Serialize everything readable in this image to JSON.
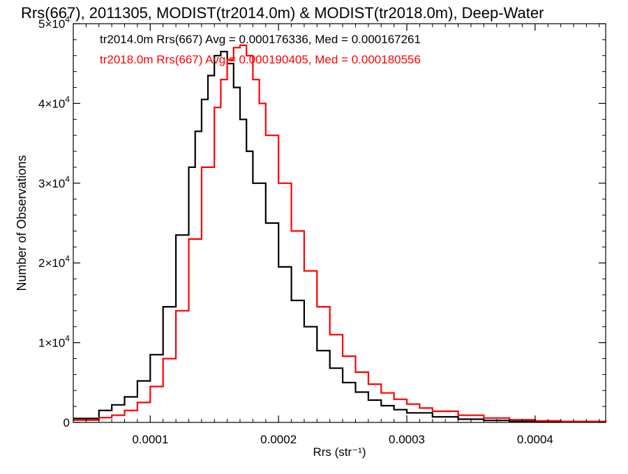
{
  "chart_data": {
    "type": "line",
    "title": "Rrs(667), 2011305, MODIST(tr2014.0m) & MODIST(tr2018.0m), Deep-Water",
    "xlabel": "Rrs (str⁻¹)",
    "ylabel": "Number of Observations",
    "xlim": [
      4e-05,
      0.000455
    ],
    "ylim": [
      0,
      50000
    ],
    "x_ticks": [
      0.0001,
      0.0002,
      0.0003,
      0.0004
    ],
    "x_tick_labels": [
      "0.0001",
      "0.0002",
      "0.0003",
      "0.0004"
    ],
    "y_ticks": [
      0,
      10000,
      20000,
      30000,
      40000,
      50000
    ],
    "y_tick_labels": [
      {
        "base": "0",
        "exp": ""
      },
      {
        "base": "1×10",
        "exp": "4"
      },
      {
        "base": "2×10",
        "exp": "4"
      },
      {
        "base": "3×10",
        "exp": "4"
      },
      {
        "base": "4×10",
        "exp": "4"
      },
      {
        "base": "5×10",
        "exp": "4"
      }
    ],
    "grid": false,
    "step_histogram": true,
    "annotations": [
      {
        "text": "tr2014.0m Rrs(667) Avg = 0.000176336, Med = 0.000167261",
        "color": "#000000"
      },
      {
        "text": "tr2018.0m Rrs(667) Avg = 0.000190405, Med = 0.000180556",
        "color": "#ff0000"
      }
    ],
    "series": [
      {
        "color": "#000000",
        "x": [
          4e-05,
          6e-05,
          7e-05,
          8e-05,
          9e-05,
          0.0001,
          0.00011,
          0.00012,
          0.00013,
          0.000135,
          0.00014,
          0.000145,
          0.00015,
          0.000155,
          0.00016,
          0.000165,
          0.00017,
          0.000175,
          0.00018,
          0.00019,
          0.0002,
          0.00021,
          0.00022,
          0.00023,
          0.00024,
          0.00025,
          0.00026,
          0.00027,
          0.00028,
          0.00029,
          0.0003,
          0.00032,
          0.00034,
          0.00036,
          0.00038,
          0.0004,
          0.00042,
          0.000455
        ],
        "y": [
          500,
          1500,
          2200,
          3200,
          5200,
          8500,
          14500,
          23500,
          32000,
          36500,
          40500,
          43500,
          46000,
          46500,
          45000,
          42000,
          38000,
          34000,
          30000,
          25000,
          19500,
          15300,
          12000,
          9000,
          6800,
          5000,
          3800,
          2800,
          2100,
          1600,
          1200,
          700,
          400,
          250,
          150,
          100,
          80,
          50
        ]
      },
      {
        "color": "#ff0000",
        "x": [
          4e-05,
          6e-05,
          7e-05,
          8e-05,
          9e-05,
          0.0001,
          0.00011,
          0.00012,
          0.00013,
          0.00014,
          0.00015,
          0.000155,
          0.00016,
          0.000165,
          0.00017,
          0.000175,
          0.00018,
          0.000185,
          0.00019,
          0.0002,
          0.00021,
          0.00022,
          0.00023,
          0.00024,
          0.00025,
          0.00026,
          0.00027,
          0.00028,
          0.00029,
          0.0003,
          0.00031,
          0.00032,
          0.00034,
          0.00036,
          0.00038,
          0.0004,
          0.00042,
          0.000455
        ],
        "y": [
          300,
          600,
          900,
          1500,
          2500,
          4500,
          8000,
          14000,
          23000,
          32000,
          39500,
          43000,
          45500,
          47000,
          47300,
          46000,
          43000,
          40000,
          36000,
          30000,
          24000,
          19000,
          14500,
          11000,
          8300,
          6300,
          4800,
          3700,
          2900,
          2300,
          1800,
          1400,
          900,
          550,
          330,
          200,
          120,
          60
        ]
      }
    ]
  }
}
